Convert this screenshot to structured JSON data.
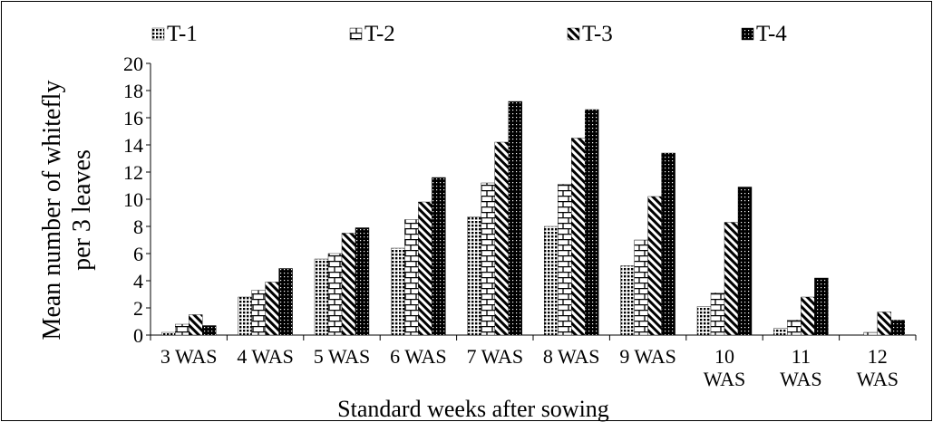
{
  "chart_data": {
    "type": "bar",
    "title": "",
    "xlabel": "Standard weeks after sowing",
    "ylabel_lines": [
      "Mean number of whitefly",
      "per 3 leaves"
    ],
    "ylim": [
      0,
      20
    ],
    "yticks": [
      0,
      2,
      4,
      6,
      8,
      10,
      12,
      14,
      16,
      18,
      20
    ],
    "grid": false,
    "legend_position": "top",
    "categories": [
      [
        "3 WAS"
      ],
      [
        "4 WAS"
      ],
      [
        "5 WAS"
      ],
      [
        "6 WAS"
      ],
      [
        "7 WAS"
      ],
      [
        "8 WAS"
      ],
      [
        "9 WAS"
      ],
      [
        "10",
        "WAS"
      ],
      [
        "11",
        "WAS"
      ],
      [
        "12",
        "WAS"
      ]
    ],
    "series": [
      {
        "name": "T-1",
        "pattern": "grid-icon",
        "values": [
          0.2,
          2.8,
          5.6,
          6.4,
          8.7,
          8.0,
          5.1,
          2.1,
          0.5,
          0.0
        ]
      },
      {
        "name": "T-2",
        "pattern": "brick-icon",
        "values": [
          0.8,
          3.3,
          6.0,
          8.5,
          11.2,
          11.1,
          7.0,
          3.1,
          1.1,
          0.2
        ]
      },
      {
        "name": "T-3",
        "pattern": "diagonal-icon",
        "values": [
          1.5,
          3.9,
          7.5,
          9.8,
          14.2,
          14.5,
          10.2,
          8.3,
          2.8,
          1.7
        ]
      },
      {
        "name": "T-4",
        "pattern": "checker-icon",
        "values": [
          0.7,
          4.9,
          7.9,
          11.6,
          17.2,
          16.6,
          13.4,
          10.9,
          4.2,
          1.1
        ]
      }
    ]
  }
}
